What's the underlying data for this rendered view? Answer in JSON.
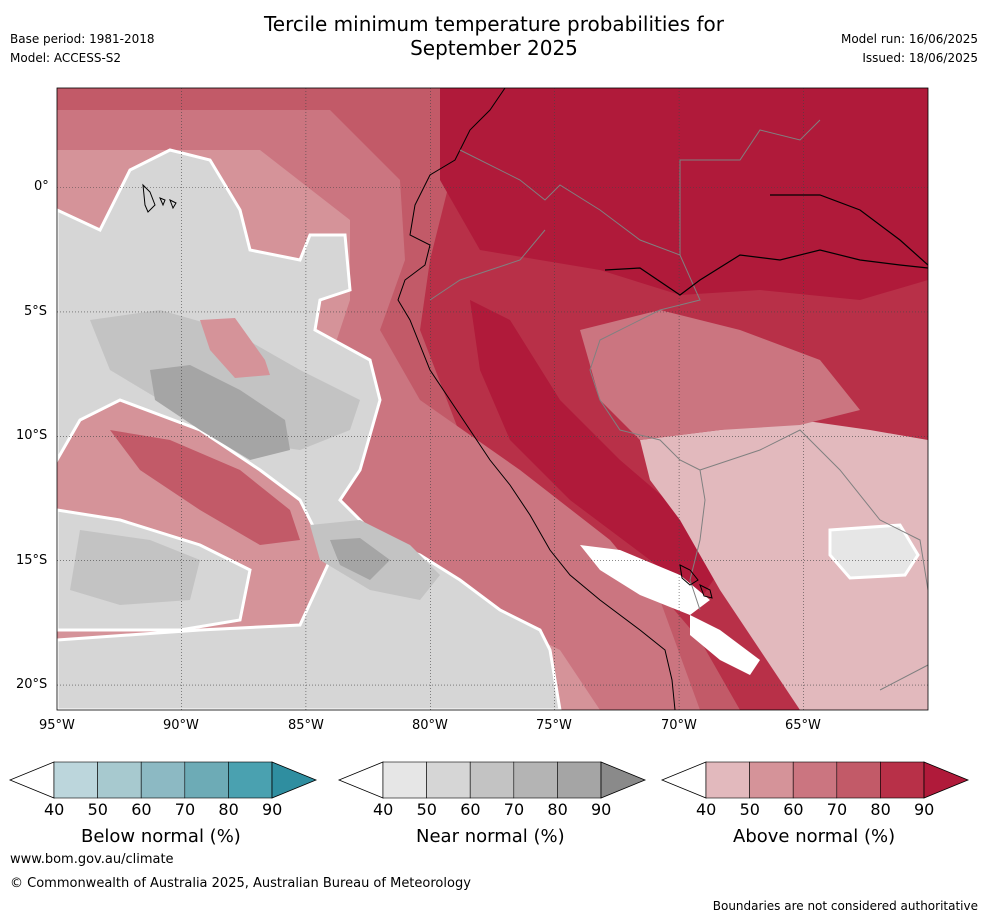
{
  "header": {
    "title_line1": "Tercile minimum temperature probabilities for",
    "title_line2": "September 2025",
    "base_period": "Base period: 1981-2018",
    "model": "Model: ACCESS-S2",
    "model_run": "Model run: 16/06/2025",
    "issued": "Issued: 18/06/2025"
  },
  "map": {
    "lon_range": [
      -95,
      -60
    ],
    "lat_range": [
      -21,
      4
    ],
    "lon_ticks": [
      -95,
      -90,
      -85,
      -80,
      -75,
      -70,
      -65
    ],
    "lon_tick_labels": [
      "95°W",
      "90°W",
      "85°W",
      "80°W",
      "75°W",
      "70°W",
      "65°W"
    ],
    "lat_ticks": [
      0,
      -5,
      -10,
      -15,
      -20
    ],
    "lat_tick_labels": [
      "0°",
      "5°S",
      "10°S",
      "15°S",
      "20°S"
    ],
    "grid": true,
    "colors": {
      "coast": "#000000",
      "border": "#808080"
    }
  },
  "colorbars": [
    {
      "label": "Below normal (%)",
      "ticks": [
        "40",
        "50",
        "60",
        "70",
        "80",
        "90"
      ],
      "colors": [
        "#ffffff",
        "#bcd6dc",
        "#a7c9cf",
        "#8cb9c3",
        "#6dabb6",
        "#4aa1b0",
        "#2f8ea0"
      ]
    },
    {
      "label": "Near normal (%)",
      "ticks": [
        "40",
        "50",
        "60",
        "70",
        "80",
        "90"
      ],
      "colors": [
        "#ffffff",
        "#e6e6e6",
        "#d6d6d6",
        "#c3c3c3",
        "#b4b4b4",
        "#a5a5a5",
        "#8a8a8a"
      ]
    },
    {
      "label": "Above normal (%)",
      "ticks": [
        "40",
        "50",
        "60",
        "70",
        "80",
        "90"
      ],
      "colors": [
        "#ffffff",
        "#e2b9bd",
        "#d59399",
        "#cb7580",
        "#c25a68",
        "#b83048",
        "#b01a3a"
      ]
    }
  ],
  "footer": {
    "url": "www.bom.gov.au/climate",
    "copyright": "© Commonwealth of Australia 2025, Australian Bureau of Meteorology",
    "disclaimer": "Boundaries are not considered authoritative"
  }
}
